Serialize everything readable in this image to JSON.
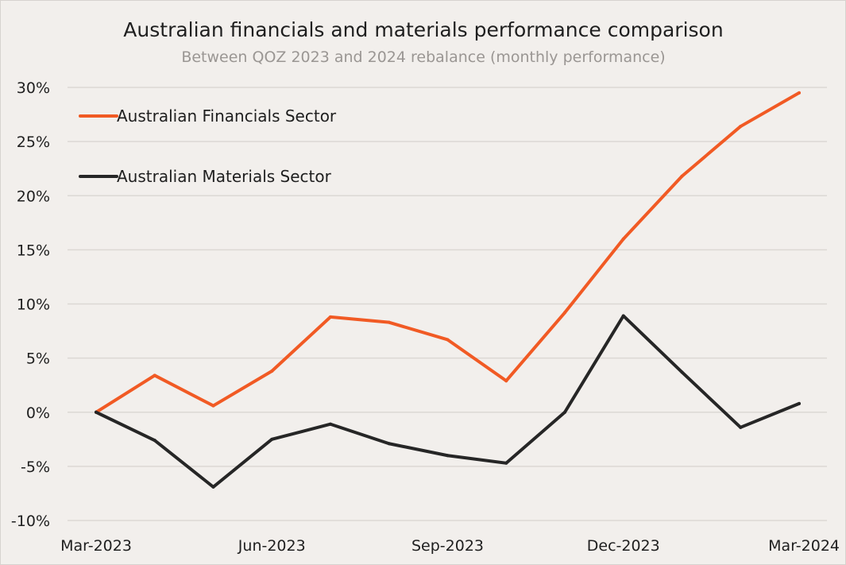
{
  "chart_data": {
    "type": "line",
    "title": "Australian financials and materials performance comparison",
    "subtitle": "Between QOZ 2023 and 2024 rebalance (monthly performance)",
    "xlabel": "",
    "ylabel": "",
    "ylim": [
      -10,
      30
    ],
    "yticks": [
      30,
      25,
      20,
      15,
      10,
      5,
      0,
      -5,
      -10
    ],
    "ytick_labels": [
      "30%",
      "25%",
      "20%",
      "15%",
      "10%",
      "5%",
      "0%",
      "-5%",
      "-10%"
    ],
    "x": [
      "Mar-2023",
      "Apr-2023",
      "May-2023",
      "Jun-2023",
      "Jul-2023",
      "Aug-2023",
      "Sep-2023",
      "Oct-2023",
      "Nov-2023",
      "Dec-2023",
      "Jan-2024",
      "Feb-2024",
      "Mar-2024"
    ],
    "xtick_labels": [
      {
        "index": 0,
        "label": "Mar-2023"
      },
      {
        "index": 3,
        "label": "Jun-2023"
      },
      {
        "index": 6,
        "label": "Sep-2023"
      },
      {
        "index": 9,
        "label": "Dec-2023"
      },
      {
        "index": 12,
        "label": "Mar-2024"
      }
    ],
    "grid": true,
    "legend_position": "top-left",
    "series": [
      {
        "name": "Australian Financials Sector",
        "color": "#f15a24",
        "values": [
          0.0,
          3.4,
          0.6,
          3.8,
          8.8,
          8.3,
          6.7,
          2.9,
          9.2,
          16.0,
          21.8,
          26.4,
          29.5
        ]
      },
      {
        "name": "Australian Materials Sector",
        "color": "#262626",
        "values": [
          0.0,
          -2.6,
          -6.9,
          -2.5,
          -1.1,
          -2.9,
          -4.0,
          -4.7,
          0.0,
          8.9,
          3.7,
          -1.4,
          0.8
        ]
      }
    ]
  }
}
